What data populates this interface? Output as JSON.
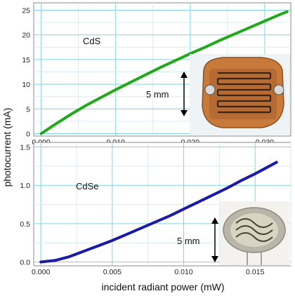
{
  "figure": {
    "ylabel": "photocurrent (mA)",
    "xlabel": "incident radiant power (mW)"
  },
  "chart_data": [
    {
      "type": "line",
      "title": "",
      "xlabel": "",
      "ylabel": "photocurrent (mA)",
      "xlim": [
        -0.001,
        0.0335
      ],
      "ylim": [
        -0.5,
        26.5
      ],
      "xticks": [
        0.0,
        0.01,
        0.02,
        0.03
      ],
      "xtick_labels": [
        "0.000",
        "0.010",
        "0.020",
        "0.030"
      ],
      "yticks": [
        0,
        5,
        10,
        15,
        20,
        25
      ],
      "ytick_labels": [
        "0",
        "5",
        "10",
        "15",
        "20",
        "25"
      ],
      "grid": true,
      "color": "#22a81b",
      "series": [
        {
          "name": "CdS",
          "x": [
            0.0,
            0.002,
            0.004,
            0.006,
            0.008,
            0.01,
            0.012,
            0.014,
            0.016,
            0.018,
            0.02,
            0.022,
            0.024,
            0.026,
            0.028,
            0.03,
            0.032,
            0.033
          ],
          "y": [
            0.0,
            2.0,
            3.9,
            5.7,
            7.3,
            8.9,
            10.4,
            11.9,
            13.4,
            14.8,
            16.2,
            17.5,
            18.9,
            20.2,
            21.5,
            22.8,
            24.1,
            24.7
          ]
        }
      ],
      "annotation": {
        "label": "CdS",
        "scale_label": "5 mm"
      }
    },
    {
      "type": "line",
      "title": "",
      "xlabel": "incident radiant power (mW)",
      "ylabel": "photocurrent (mA)",
      "xlim": [
        -0.0005,
        0.0175
      ],
      "ylim": [
        -0.05,
        1.56
      ],
      "xticks": [
        0.0,
        0.005,
        0.01,
        0.015
      ],
      "xtick_labels": [
        "0.000",
        "0.005",
        "0.010",
        "0.015"
      ],
      "yticks": [
        0.0,
        0.5,
        1.0,
        1.5
      ],
      "ytick_labels": [
        "0.0",
        "0.5",
        "1.0",
        "1.5"
      ],
      "grid": true,
      "color": "#1a1aa6",
      "series": [
        {
          "name": "CdSe",
          "x": [
            0.0,
            0.001,
            0.002,
            0.003,
            0.004,
            0.005,
            0.006,
            0.007,
            0.008,
            0.009,
            0.01,
            0.011,
            0.012,
            0.013,
            0.014,
            0.015,
            0.016,
            0.0165
          ],
          "y": [
            0.0,
            0.02,
            0.07,
            0.14,
            0.21,
            0.28,
            0.36,
            0.44,
            0.52,
            0.6,
            0.69,
            0.78,
            0.87,
            0.96,
            1.06,
            1.15,
            1.25,
            1.3
          ]
        }
      ],
      "annotation": {
        "label": "CdSe",
        "scale_label": "5 mm"
      }
    }
  ]
}
